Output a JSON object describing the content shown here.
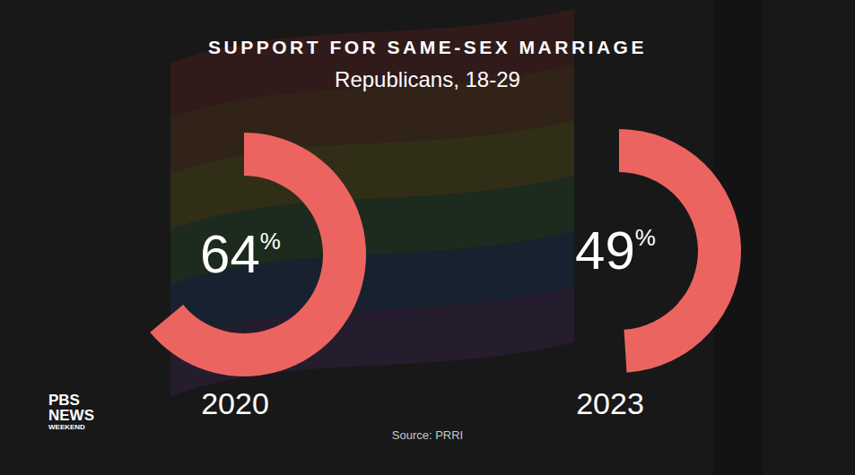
{
  "chart_data": {
    "type": "donut",
    "title": "SUPPORT FOR SAME-SEX MARRIAGE",
    "subtitle": "Republicans, 18-29",
    "categories": [
      "2020",
      "2023"
    ],
    "values": [
      64,
      49
    ],
    "value_labels": [
      "64%",
      "49%"
    ],
    "color": "#ec6460",
    "ylim": [
      0,
      100
    ],
    "data_labels": true,
    "tick_labels": false,
    "source": "Source: PRRI",
    "logo": [
      "PBS",
      "NEWS",
      "WEEKEND"
    ]
  }
}
